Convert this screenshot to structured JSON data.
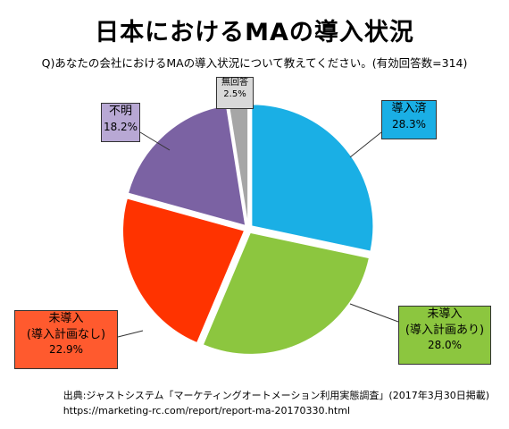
{
  "title": "日本におけるMAの導入状況",
  "subtitle": "Q)あなたの会社におけるMAの導入状況について教えてください。(有効回答数=314)",
  "chart_data": {
    "type": "pie",
    "slices": [
      {
        "label": "導入済",
        "value": 28.3,
        "value_label": "28.3%",
        "color": "#1aafe5"
      },
      {
        "label": "未導入 (導入計画あり)",
        "label_lines": [
          "未導入",
          "(導入計画あり)"
        ],
        "value": 28.0,
        "value_label": "28.0%",
        "color": "#8cc63f"
      },
      {
        "label": "未導入 (導入計画なし)",
        "label_lines": [
          "未導入",
          "(導入計画なし)"
        ],
        "value": 22.9,
        "value_label": "22.9%",
        "color": "#ff3300"
      },
      {
        "label": "不明",
        "value": 18.2,
        "value_label": "18.2%",
        "color": "#7b62a3"
      },
      {
        "label": "無回答",
        "value": 2.5,
        "value_label": "2.5%",
        "color": "#a6a6a6"
      }
    ],
    "start_angle_deg": 0,
    "direction": "clockwise"
  },
  "source": {
    "line1": "出典:ジャストシステム「マーケティングオートメーション利用実態調査」(2017年3月30日掲載)",
    "line2": "https://marketing-rc.com/report/report-ma-20170330.html"
  }
}
